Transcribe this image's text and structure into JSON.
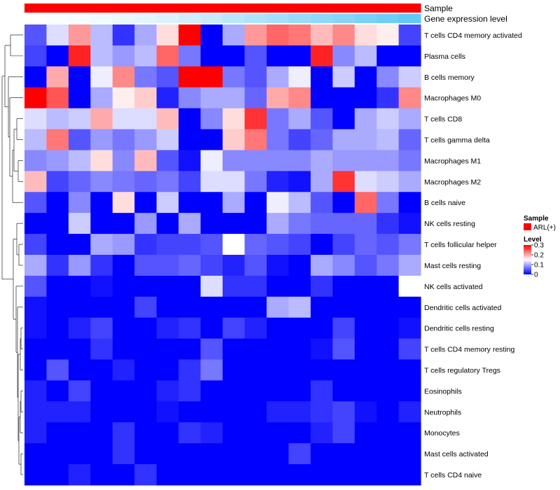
{
  "chart_data": {
    "type": "heatmap",
    "title": "",
    "annotation_tracks": [
      {
        "label": "Sample",
        "kind": "categorical"
      },
      {
        "label": "Gene expression level",
        "kind": "gradient"
      }
    ],
    "columns_count": 18,
    "rows": [
      "T cells CD4 memory activated",
      "Plasma cells",
      "B cells memory",
      "Macrophages M0",
      "T cells CD8",
      "T cells gamma delta",
      "Macrophages M1",
      "Macrophages M2",
      "B cells naive",
      "NK cells resting",
      "T cells follicular helper",
      "Mast cells resting",
      "NK cells activated",
      "Dendritic cells activated",
      "Dendritic cells resting",
      "T cells CD4 memory resting",
      "T cells regulatory  Tregs",
      "Eosinophils",
      "Neutrophils",
      "Monocytes",
      "Mast cells activated",
      "T cells CD4 naive"
    ],
    "values": [
      [
        0.05,
        0.13,
        0.21,
        0.11,
        0.03,
        0.1,
        0.17,
        0.3,
        0.0,
        0.1,
        0.21,
        0.24,
        0.23,
        0.19,
        0.22,
        0.17,
        0.16,
        0.04
      ],
      [
        0.04,
        0.0,
        0.28,
        0.11,
        0.09,
        0.11,
        0.24,
        0.07,
        0.0,
        0.0,
        0.05,
        0.0,
        0.0,
        0.28,
        0.08,
        0.11,
        0.0,
        0.0
      ],
      [
        0.0,
        0.2,
        0.0,
        0.14,
        0.22,
        0.07,
        0.05,
        0.3,
        0.3,
        0.07,
        0.05,
        0.1,
        0.14,
        0.0,
        0.12,
        0.0,
        0.08,
        0.12
      ],
      [
        0.3,
        0.25,
        0.0,
        0.1,
        0.16,
        0.18,
        0.02,
        0.08,
        0.1,
        0.1,
        0.06,
        0.2,
        0.22,
        0.0,
        0.0,
        0.0,
        0.03,
        0.22
      ],
      [
        0.13,
        0.11,
        0.12,
        0.2,
        0.13,
        0.13,
        0.19,
        0.0,
        0.08,
        0.17,
        0.27,
        0.07,
        0.1,
        0.05,
        0.0,
        0.1,
        0.12,
        0.1
      ],
      [
        0.11,
        0.23,
        0.05,
        0.09,
        0.07,
        0.09,
        0.12,
        0.0,
        0.0,
        0.18,
        0.23,
        0.07,
        0.04,
        0.06,
        0.1,
        0.1,
        0.11,
        0.06
      ],
      [
        0.08,
        0.09,
        0.11,
        0.17,
        0.08,
        0.19,
        0.05,
        0.01,
        0.14,
        0.08,
        0.08,
        0.08,
        0.08,
        0.1,
        0.09,
        0.09,
        0.09,
        0.07
      ],
      [
        0.19,
        0.04,
        0.06,
        0.08,
        0.07,
        0.06,
        0.07,
        0.04,
        0.13,
        0.13,
        0.07,
        0.02,
        0.01,
        0.1,
        0.27,
        0.13,
        0.12,
        0.1
      ],
      [
        0.05,
        0.0,
        0.08,
        0.0,
        0.17,
        0.0,
        0.12,
        0.0,
        0.0,
        0.1,
        0.0,
        0.14,
        0.11,
        0.05,
        0.0,
        0.24,
        0.07,
        0.0
      ],
      [
        0.0,
        0.0,
        0.12,
        0.0,
        0.0,
        0.09,
        0.0,
        0.1,
        0.0,
        0.0,
        0.0,
        0.1,
        0.07,
        0.06,
        0.06,
        0.06,
        0.03,
        0.01
      ],
      [
        0.04,
        0.0,
        0.0,
        0.1,
        0.09,
        0.03,
        0.04,
        0.04,
        0.05,
        0.15,
        0.06,
        0.05,
        0.04,
        0.0,
        0.04,
        0.06,
        0.05,
        0.07
      ],
      [
        0.1,
        0.03,
        0.09,
        0.03,
        0.0,
        0.05,
        0.05,
        0.06,
        0.04,
        0.02,
        0.05,
        0.01,
        0.0,
        0.1,
        0.08,
        0.05,
        0.07,
        0.1
      ],
      [
        0.05,
        0.0,
        0.0,
        0.01,
        0.0,
        0.0,
        0.0,
        0.0,
        0.13,
        0.03,
        0.03,
        0.0,
        0.0,
        0.03,
        0.0,
        0.0,
        0.0,
        0.15
      ],
      [
        0.01,
        0.0,
        0.0,
        0.0,
        0.0,
        0.04,
        0.0,
        0.0,
        0.0,
        0.0,
        0.0,
        0.1,
        0.11,
        0.0,
        0.0,
        0.0,
        0.0,
        0.0
      ],
      [
        0.01,
        0.0,
        0.02,
        0.04,
        0.0,
        0.0,
        0.02,
        0.03,
        0.0,
        0.04,
        0.02,
        0.0,
        0.0,
        0.0,
        0.04,
        0.0,
        0.0,
        0.01
      ],
      [
        0.0,
        0.0,
        0.0,
        0.03,
        0.0,
        0.0,
        0.0,
        0.0,
        0.05,
        0.0,
        0.0,
        0.0,
        0.0,
        0.01,
        0.05,
        0.0,
        0.0,
        0.04
      ],
      [
        0.0,
        0.05,
        0.0,
        0.0,
        0.02,
        0.0,
        0.0,
        0.03,
        0.07,
        0.0,
        0.0,
        0.0,
        0.0,
        0.0,
        0.0,
        0.0,
        0.0,
        0.0
      ],
      [
        0.02,
        0.0,
        0.04,
        0.0,
        0.0,
        0.0,
        0.02,
        0.03,
        0.0,
        0.0,
        0.0,
        0.0,
        0.0,
        0.03,
        0.0,
        0.0,
        0.0,
        0.0
      ],
      [
        0.02,
        0.02,
        0.02,
        0.0,
        0.0,
        0.0,
        0.01,
        0.0,
        0.0,
        0.0,
        0.0,
        0.02,
        0.02,
        0.03,
        0.04,
        0.01,
        0.0,
        0.02
      ],
      [
        0.02,
        0.0,
        0.0,
        0.0,
        0.03,
        0.0,
        0.0,
        0.03,
        0.02,
        0.0,
        0.0,
        0.0,
        0.0,
        0.02,
        0.04,
        0.0,
        0.0,
        0.0
      ],
      [
        0.0,
        0.0,
        0.0,
        0.0,
        0.03,
        0.0,
        0.0,
        0.0,
        0.0,
        0.0,
        0.0,
        0.0,
        0.04,
        0.0,
        0.0,
        0.0,
        0.0,
        0.0
      ],
      [
        0.0,
        0.0,
        0.02,
        0.0,
        0.0,
        0.03,
        0.0,
        0.0,
        0.0,
        0.0,
        0.0,
        0.0,
        0.0,
        0.0,
        0.0,
        0.0,
        0.0,
        0.0
      ]
    ],
    "gene_expression_track": [
      0.0,
      0.02,
      0.05,
      0.08,
      0.12,
      0.16,
      0.2,
      0.27,
      0.33,
      0.4,
      0.46,
      0.52,
      0.58,
      0.64,
      0.7,
      0.76,
      0.82,
      0.9
    ],
    "colorscale": {
      "low": "#0000ff",
      "mid": "#ffffff",
      "high": "#ff0000",
      "min": 0,
      "max": 0.3
    },
    "annotation_colors": {
      "sample": "#ff0000",
      "gene_expression_low": "#ffffff",
      "gene_expression_high": "#4fc3f7"
    },
    "legend": {
      "placement": "right",
      "sample_title": "Sample",
      "sample_entries": [
        {
          "label": "ARL(+)",
          "color": "#ff0000"
        }
      ],
      "level_title": "Level",
      "level_ticks": [
        {
          "value": 0.3,
          "label": "0.3"
        },
        {
          "value": 0.2,
          "label": "0.2"
        },
        {
          "value": 0.1,
          "label": "0.1"
        },
        {
          "value": 0,
          "label": "0"
        }
      ]
    },
    "row_dendrogram": true,
    "column_dendrogram": false
  }
}
